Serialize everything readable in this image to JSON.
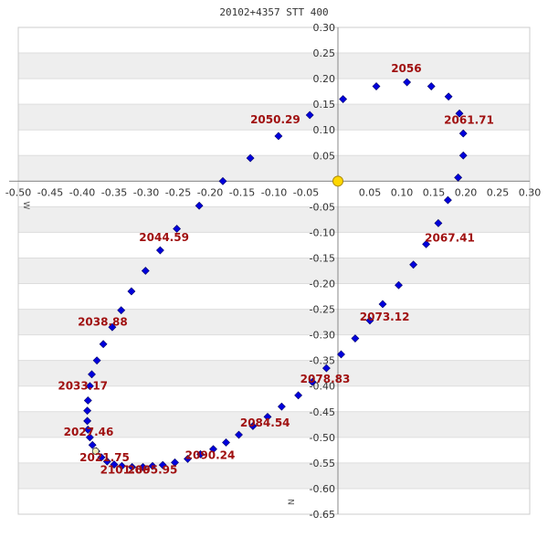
{
  "chart_data": {
    "type": "scatter",
    "title": "20102+4357 STT 400",
    "xlim": [
      -0.5,
      0.3
    ],
    "ylim": [
      -0.65,
      0.3
    ],
    "x_ticks": [
      "-0.50",
      "-0.45",
      "-0.40",
      "-0.35",
      "-0.30",
      "-0.25",
      "-0.20",
      "-0.15",
      "-0.10",
      "-0.05",
      "0.05",
      "0.10",
      "0.15",
      "0.20",
      "0.25",
      "0.30"
    ],
    "y_ticks": [
      "0.30",
      "0.25",
      "0.20",
      "0.15",
      "0.10",
      "0.05",
      "-0.05",
      "-0.10",
      "-0.15",
      "-0.20",
      "-0.25",
      "-0.30",
      "-0.35",
      "-0.40",
      "-0.45",
      "-0.50",
      "-0.55",
      "-0.60",
      "-0.65"
    ],
    "direction_labels": {
      "west": "W",
      "north": "N"
    },
    "grid": true,
    "primary_color": "#ffd700",
    "orbit_color": "#0000dd",
    "highlight_color": "#eeeebb",
    "label_color": "#a01010",
    "primary": {
      "x": 0.0,
      "y": 0.0
    },
    "series": [
      {
        "points": [
          [
            0.008,
            0.16
          ],
          [
            0.06,
            0.185
          ],
          [
            0.108,
            0.193
          ],
          [
            0.146,
            0.185
          ],
          [
            0.173,
            0.165
          ],
          [
            0.19,
            0.132
          ],
          [
            0.196,
            0.093
          ],
          [
            0.196,
            0.05
          ],
          [
            0.188,
            0.007
          ],
          [
            0.172,
            -0.037
          ],
          [
            0.157,
            -0.082
          ],
          [
            0.138,
            -0.123
          ],
          [
            0.118,
            -0.163
          ],
          [
            0.095,
            -0.203
          ],
          [
            0.07,
            -0.24
          ],
          [
            0.05,
            -0.272
          ],
          [
            0.027,
            -0.307
          ],
          [
            0.005,
            -0.338
          ],
          [
            -0.018,
            -0.365
          ],
          [
            -0.04,
            -0.392
          ],
          [
            -0.062,
            -0.418
          ],
          [
            -0.088,
            -0.44
          ],
          [
            -0.11,
            -0.46
          ],
          [
            -0.133,
            -0.478
          ],
          [
            -0.155,
            -0.495
          ],
          [
            -0.175,
            -0.51
          ],
          [
            -0.195,
            -0.523
          ],
          [
            -0.215,
            -0.533
          ],
          [
            -0.235,
            -0.542
          ],
          [
            -0.255,
            -0.549
          ],
          [
            -0.274,
            -0.554
          ],
          [
            -0.29,
            -0.556
          ],
          [
            -0.305,
            -0.558
          ],
          [
            -0.322,
            -0.558
          ],
          [
            -0.338,
            -0.556
          ],
          [
            -0.35,
            -0.553
          ],
          [
            -0.361,
            -0.547
          ],
          [
            -0.37,
            -0.539
          ],
          [
            -0.378,
            -0.527
          ],
          [
            -0.384,
            -0.515
          ],
          [
            -0.388,
            -0.5
          ],
          [
            -0.391,
            -0.485
          ],
          [
            -0.392,
            -0.468
          ],
          [
            -0.392,
            -0.448
          ],
          [
            -0.391,
            -0.428
          ],
          [
            -0.388,
            -0.4
          ],
          [
            -0.385,
            -0.377
          ],
          [
            -0.377,
            -0.35
          ],
          [
            -0.367,
            -0.318
          ],
          [
            -0.353,
            -0.285
          ],
          [
            -0.339,
            -0.252
          ],
          [
            -0.323,
            -0.215
          ],
          [
            -0.301,
            -0.175
          ],
          [
            -0.278,
            -0.135
          ],
          [
            -0.252,
            -0.093
          ],
          [
            -0.217,
            -0.048
          ],
          [
            -0.18,
            0.0
          ],
          [
            -0.137,
            0.045
          ],
          [
            -0.093,
            0.088
          ],
          [
            -0.044,
            0.129
          ]
        ]
      }
    ],
    "highlight_point": [
      -0.379,
      -0.527
    ],
    "annotations": [
      {
        "text": "2056",
        "x": 0.107,
        "y": 0.213
      },
      {
        "text": "2050.29",
        "x": -0.098,
        "y": 0.113
      },
      {
        "text": "2061.71",
        "x": 0.205,
        "y": 0.112
      },
      {
        "text": "2044.59",
        "x": -0.272,
        "y": -0.117
      },
      {
        "text": "2067.41",
        "x": 0.175,
        "y": -0.118
      },
      {
        "text": "2038.88",
        "x": -0.368,
        "y": -0.282
      },
      {
        "text": "2073.12",
        "x": 0.073,
        "y": -0.272
      },
      {
        "text": "2078.83",
        "x": -0.02,
        "y": -0.393
      },
      {
        "text": "2033.17",
        "x": -0.399,
        "y": -0.407
      },
      {
        "text": "2084.54",
        "x": -0.114,
        "y": -0.479
      },
      {
        "text": "2027.46",
        "x": -0.39,
        "y": -0.497
      },
      {
        "text": "2090.24",
        "x": -0.2,
        "y": -0.542
      },
      {
        "text": "2021.75",
        "x": -0.365,
        "y": -0.547
      },
      {
        "text": "2101.66",
        "x": -0.333,
        "y": -0.571
      },
      {
        "text": "2095.95",
        "x": -0.29,
        "y": -0.571
      }
    ]
  }
}
